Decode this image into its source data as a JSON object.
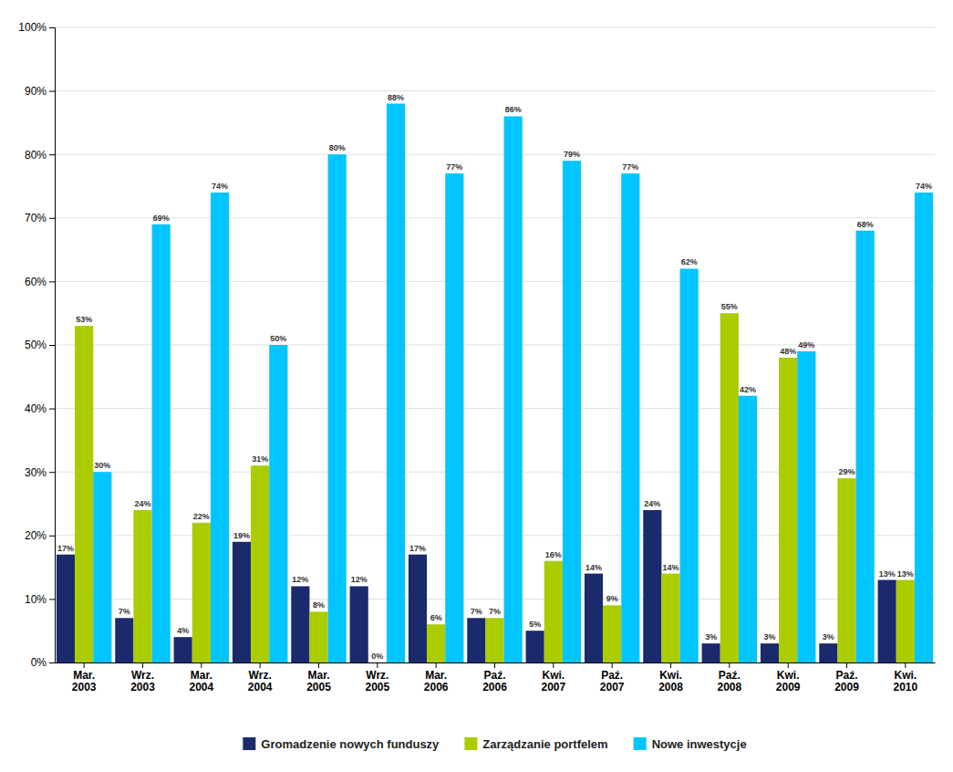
{
  "chart_data": {
    "type": "bar",
    "categories": [
      "Mar.\n2003",
      "Wrz.\n2003",
      "Mar.\n2004",
      "Wrz.\n2004",
      "Mar.\n2005",
      "Wrz.\n2005",
      "Mar.\n2006",
      "Paź.\n2006",
      "Kwi.\n2007",
      "Paź.\n2007",
      "Kwi.\n2008",
      "Paź.\n2008",
      "Kwi.\n2009",
      "Paź.\n2009",
      "Kwi.\n2010"
    ],
    "series": [
      {
        "name": "Gromadzenie nowych funduszy",
        "color": "#1B2A6B",
        "values": [
          17,
          7,
          4,
          19,
          12,
          12,
          17,
          7,
          5,
          14,
          24,
          3,
          3,
          3,
          13
        ],
        "value_labels": [
          "17%",
          "7%",
          "4%",
          "19%",
          "12%",
          "12%",
          "17%",
          "7%",
          "5%",
          "14%",
          "24%",
          "3%",
          "3%",
          "3%",
          "13%"
        ]
      },
      {
        "name": "Zarządzanie portfelem",
        "color": "#AACC00",
        "values": [
          53,
          24,
          22,
          31,
          8,
          0,
          6,
          7,
          16,
          9,
          14,
          55,
          48,
          29,
          13
        ],
        "value_labels": [
          "53%",
          "24%",
          "22%",
          "31%",
          "8%",
          "0%",
          "6%",
          "7%",
          "16%",
          "9%",
          "14%",
          "55%",
          "48%",
          "29%",
          "13%"
        ]
      },
      {
        "name": "Nowe inwestycje",
        "color": "#00C5FF",
        "values": [
          30,
          69,
          74,
          50,
          80,
          88,
          77,
          86,
          79,
          77,
          62,
          42,
          49,
          68,
          74
        ],
        "value_labels": [
          "30%",
          "69%",
          "74%",
          "50%",
          "80%",
          "88%",
          "77%",
          "86%",
          "79%",
          "77%",
          "62%",
          "42%",
          "49%",
          "68%",
          "74%"
        ]
      }
    ],
    "ylim": [
      0,
      100
    ],
    "yticks": [
      {
        "value": 0,
        "label": "0%"
      },
      {
        "value": 10,
        "label": "10%"
      },
      {
        "value": 20,
        "label": "20%"
      },
      {
        "value": 30,
        "label": "30%"
      },
      {
        "value": 40,
        "label": "40%"
      },
      {
        "value": 50,
        "label": "50%"
      },
      {
        "value": 60,
        "label": "60%"
      },
      {
        "value": 70,
        "label": "70%"
      },
      {
        "value": 80,
        "label": "80%"
      },
      {
        "value": 90,
        "label": "90%"
      },
      {
        "value": 100,
        "label": "100%"
      }
    ],
    "grid": true,
    "legend": "bottom",
    "data_labels": true
  }
}
